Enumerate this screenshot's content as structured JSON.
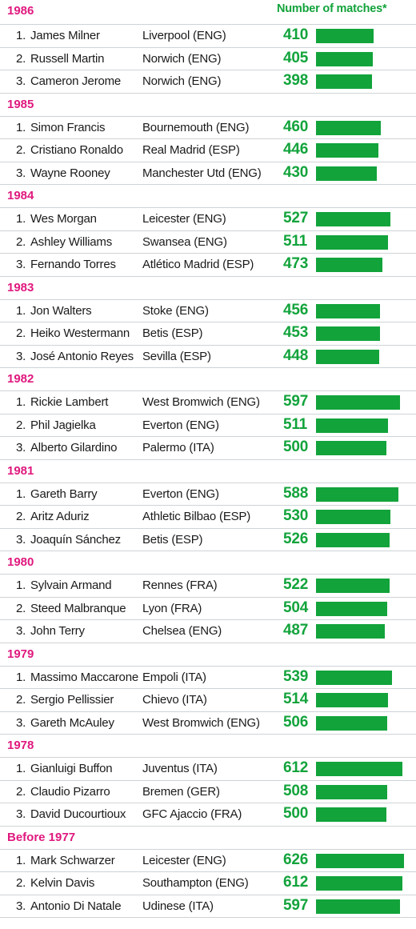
{
  "chart_data": {
    "type": "bar",
    "ylabel": "Number of matches*",
    "ylim": [
      0,
      630
    ],
    "groups": [
      {
        "label": "1986",
        "rows": [
          {
            "rank": "1.",
            "player": "James Milner",
            "club": "Liverpool (ENG)",
            "value": 410
          },
          {
            "rank": "2.",
            "player": "Russell Martin",
            "club": "Norwich (ENG)",
            "value": 405
          },
          {
            "rank": "3.",
            "player": "Cameron Jerome",
            "club": "Norwich (ENG)",
            "value": 398
          }
        ]
      },
      {
        "label": "1985",
        "rows": [
          {
            "rank": "1.",
            "player": "Simon Francis",
            "club": "Bournemouth (ENG)",
            "value": 460
          },
          {
            "rank": "2.",
            "player": "Cristiano Ronaldo",
            "club": "Real Madrid (ESP)",
            "value": 446
          },
          {
            "rank": "3.",
            "player": "Wayne Rooney",
            "club": "Manchester Utd (ENG)",
            "value": 430
          }
        ]
      },
      {
        "label": "1984",
        "rows": [
          {
            "rank": "1.",
            "player": "Wes Morgan",
            "club": "Leicester (ENG)",
            "value": 527
          },
          {
            "rank": "2.",
            "player": "Ashley Williams",
            "club": "Swansea (ENG)",
            "value": 511
          },
          {
            "rank": "3.",
            "player": "Fernando Torres",
            "club": "Atlético Madrid (ESP)",
            "value": 473
          }
        ]
      },
      {
        "label": "1983",
        "rows": [
          {
            "rank": "1.",
            "player": "Jon Walters",
            "club": "Stoke (ENG)",
            "value": 456
          },
          {
            "rank": "2.",
            "player": "Heiko Westermann",
            "club": "Betis (ESP)",
            "value": 453
          },
          {
            "rank": "3.",
            "player": "José Antonio Reyes",
            "club": "Sevilla (ESP)",
            "value": 448
          }
        ]
      },
      {
        "label": "1982",
        "rows": [
          {
            "rank": "1.",
            "player": "Rickie Lambert",
            "club": "West Bromwich (ENG)",
            "value": 597
          },
          {
            "rank": "2.",
            "player": "Phil Jagielka",
            "club": "Everton (ENG)",
            "value": 511
          },
          {
            "rank": "3.",
            "player": "Alberto Gilardino",
            "club": "Palermo (ITA)",
            "value": 500
          }
        ]
      },
      {
        "label": "1981",
        "rows": [
          {
            "rank": "1.",
            "player": "Gareth Barry",
            "club": "Everton (ENG)",
            "value": 588
          },
          {
            "rank": "2.",
            "player": "Aritz Aduriz",
            "club": "Athletic Bilbao (ESP)",
            "value": 530
          },
          {
            "rank": "3.",
            "player": "Joaquín Sánchez",
            "club": "Betis (ESP)",
            "value": 526
          }
        ]
      },
      {
        "label": "1980",
        "rows": [
          {
            "rank": "1.",
            "player": "Sylvain Armand",
            "club": "Rennes (FRA)",
            "value": 522
          },
          {
            "rank": "2.",
            "player": "Steed Malbranque",
            "club": "Lyon (FRA)",
            "value": 504
          },
          {
            "rank": "3.",
            "player": "John Terry",
            "club": "Chelsea (ENG)",
            "value": 487
          }
        ]
      },
      {
        "label": "1979",
        "rows": [
          {
            "rank": "1.",
            "player": "Massimo Maccarone",
            "club": "Empoli (ITA)",
            "value": 539
          },
          {
            "rank": "2.",
            "player": "Sergio Pellissier",
            "club": "Chievo (ITA)",
            "value": 514
          },
          {
            "rank": "3.",
            "player": "Gareth McAuley",
            "club": "West Bromwich (ENG)",
            "value": 506
          }
        ]
      },
      {
        "label": "1978",
        "rows": [
          {
            "rank": "1.",
            "player": "Gianluigi Buffon",
            "club": "Juventus (ITA)",
            "value": 612
          },
          {
            "rank": "2.",
            "player": "Claudio Pizarro",
            "club": "Bremen (GER)",
            "value": 508
          },
          {
            "rank": "3.",
            "player": "David Ducourtioux",
            "club": "GFC Ajaccio (FRA)",
            "value": 500
          }
        ]
      },
      {
        "label": "Before 1977",
        "rows": [
          {
            "rank": "1.",
            "player": "Mark Schwarzer",
            "club": "Leicester (ENG)",
            "value": 626
          },
          {
            "rank": "2.",
            "player": "Kelvin Davis",
            "club": "Southampton (ENG)",
            "value": 612
          },
          {
            "rank": "3.",
            "player": "Antonio Di Natale",
            "club": "Udinese (ITA)",
            "value": 597
          }
        ]
      }
    ]
  },
  "colors": {
    "year": "#e0187e",
    "accent": "#12a33b",
    "rule": "#cfd3d6"
  }
}
